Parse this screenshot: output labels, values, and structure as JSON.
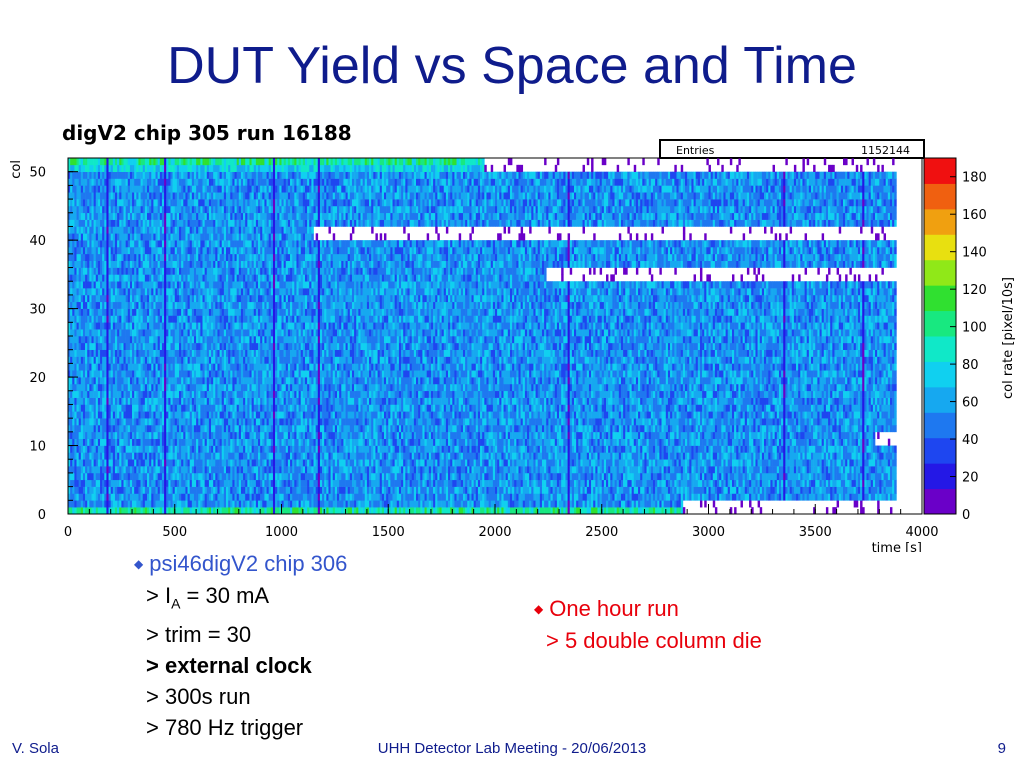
{
  "slide": {
    "title": "DUT Yield vs Space and Time",
    "footer_left": "V. Sola",
    "footer_center": "UHH Detector Lab Meeting - 20/06/2013",
    "footer_right": "9"
  },
  "bullets_left": {
    "title": "psi46digV2 chip 306",
    "items": [
      "> I",
      "A",
      " = 30 mA",
      "> trim = 30",
      "> external clock",
      "> 300s run",
      "> 780 Hz trigger"
    ]
  },
  "bullets_right": {
    "title": "One hour run",
    "item": "> 5 double column die"
  },
  "chart_data": {
    "type": "heatmap",
    "title": "digV2 chip 305 run 16188",
    "xlabel": "time [s]",
    "ylabel": "col",
    "zlabel": "col rate [pixel/10s]",
    "xlim": [
      0,
      4000
    ],
    "ylim": [
      0,
      52
    ],
    "zlim": [
      0,
      190
    ],
    "x_ticks": [
      0,
      500,
      1000,
      1500,
      2000,
      2500,
      3000,
      3500,
      4000
    ],
    "y_ticks": [
      0,
      10,
      20,
      30,
      40,
      50
    ],
    "z_ticks": [
      0,
      20,
      40,
      60,
      80,
      100,
      120,
      140,
      160,
      180
    ],
    "stats_box": {
      "label": "Entries",
      "value": "1152144"
    },
    "typical_rate": 55,
    "dead_double_columns": [
      {
        "cols": [
          50,
          51
        ],
        "from_time": 1950,
        "to_time": 3880
      },
      {
        "cols": [
          40,
          41
        ],
        "from_time": 1150,
        "to_time": 3880
      },
      {
        "cols": [
          34,
          35
        ],
        "from_time": 2240,
        "to_time": 3880
      },
      {
        "cols": [
          0,
          1
        ],
        "from_time": 2880,
        "to_time": 3880
      },
      {
        "cols": [
          10,
          11
        ],
        "from_time": 3780,
        "to_time": 3880
      }
    ],
    "low_rate_times": [
      180,
      450,
      960,
      1170,
      2340,
      3350,
      3720
    ],
    "run_end_time": 3880
  }
}
